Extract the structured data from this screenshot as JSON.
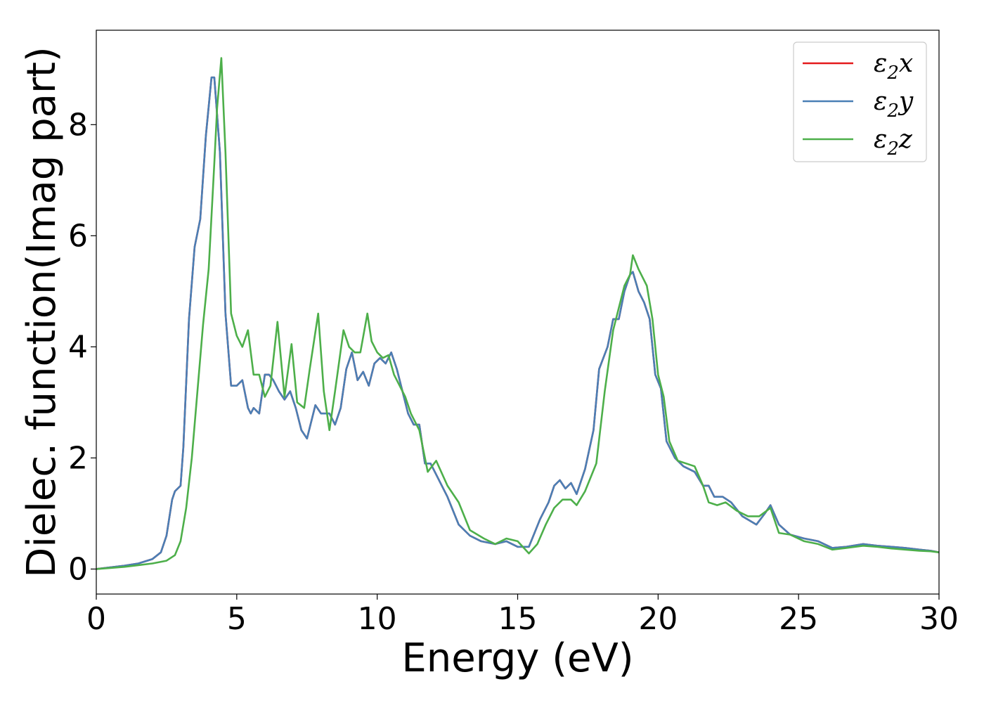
{
  "chart_data": {
    "type": "line",
    "title": "",
    "xlabel": "Energy (eV)",
    "ylabel": "Dielec. function(Imag part)",
    "xlim": [
      0,
      30
    ],
    "ylim": [
      -0.45,
      9.7
    ],
    "xticks": [
      0,
      5,
      10,
      15,
      20,
      25,
      30
    ],
    "yticks": [
      0,
      2,
      4,
      6,
      8
    ],
    "grid": false,
    "legend": "top-right",
    "series": [
      {
        "name": "ε2x",
        "symbol": "ε",
        "sub": "2",
        "suffix": "x",
        "color": "#e41a1c",
        "x": [
          0,
          0.5,
          1,
          1.5,
          2,
          2.3,
          2.5,
          2.7,
          2.8,
          3,
          3.1,
          3.3,
          3.5,
          3.7,
          3.9,
          4.1,
          4.2,
          4.4,
          4.6,
          4.8,
          5,
          5.2,
          5.4,
          5.5,
          5.6,
          5.8,
          6,
          6.15,
          6.3,
          6.5,
          6.7,
          6.9,
          7.1,
          7.3,
          7.5,
          7.8,
          8,
          8.3,
          8.5,
          8.7,
          8.9,
          9.1,
          9.3,
          9.5,
          9.7,
          9.9,
          10.1,
          10.3,
          10.5,
          10.7,
          10.9,
          11.1,
          11.3,
          11.5,
          11.7,
          11.9,
          12.1,
          12.5,
          12.9,
          13.3,
          13.7,
          14.2,
          14.6,
          15,
          15.4,
          15.8,
          16.1,
          16.3,
          16.5,
          16.7,
          16.9,
          17.1,
          17.4,
          17.7,
          17.9,
          18.2,
          18.4,
          18.6,
          18.8,
          19,
          19.1,
          19.3,
          19.5,
          19.7,
          19.9,
          20.1,
          20.3,
          20.6,
          20.9,
          21.3,
          21.6,
          21.8,
          22,
          22.3,
          22.6,
          23,
          23.5,
          23.8,
          24,
          24.3,
          24.7,
          25.2,
          25.7,
          26.2,
          26.7,
          27.3,
          27.8,
          28.3,
          28.8,
          29.3,
          29.7,
          30
        ],
        "y": [
          0,
          0.03,
          0.06,
          0.1,
          0.18,
          0.3,
          0.6,
          1.25,
          1.4,
          1.5,
          2.2,
          4.5,
          5.8,
          6.3,
          7.8,
          8.85,
          8.85,
          7.5,
          4.6,
          3.3,
          3.3,
          3.4,
          2.9,
          2.8,
          2.9,
          2.8,
          3.5,
          3.5,
          3.4,
          3.2,
          3.05,
          3.2,
          2.9,
          2.5,
          2.35,
          2.95,
          2.8,
          2.8,
          2.6,
          2.9,
          3.6,
          3.9,
          3.4,
          3.55,
          3.3,
          3.7,
          3.8,
          3.7,
          3.9,
          3.6,
          3.2,
          2.8,
          2.6,
          2.6,
          1.9,
          1.9,
          1.7,
          1.3,
          0.8,
          0.6,
          0.5,
          0.45,
          0.5,
          0.4,
          0.4,
          0.9,
          1.2,
          1.5,
          1.6,
          1.45,
          1.55,
          1.35,
          1.8,
          2.5,
          3.6,
          4,
          4.5,
          4.5,
          5,
          5.3,
          5.35,
          5,
          4.8,
          4.5,
          3.5,
          3.25,
          2.3,
          2,
          1.85,
          1.75,
          1.5,
          1.5,
          1.3,
          1.3,
          1.2,
          0.95,
          0.8,
          1,
          1.15,
          0.8,
          0.62,
          0.55,
          0.5,
          0.38,
          0.4,
          0.45,
          0.42,
          0.4,
          0.38,
          0.35,
          0.33,
          0.3
        ]
      },
      {
        "name": "ε2y",
        "symbol": "ε",
        "sub": "2",
        "suffix": "y",
        "color": "#4a7fb5",
        "x": [
          0,
          0.5,
          1,
          1.5,
          2,
          2.3,
          2.5,
          2.7,
          2.8,
          3,
          3.1,
          3.3,
          3.5,
          3.7,
          3.9,
          4.1,
          4.2,
          4.4,
          4.6,
          4.8,
          5,
          5.2,
          5.4,
          5.5,
          5.6,
          5.8,
          6,
          6.15,
          6.3,
          6.5,
          6.7,
          6.9,
          7.1,
          7.3,
          7.5,
          7.8,
          8,
          8.3,
          8.5,
          8.7,
          8.9,
          9.1,
          9.3,
          9.5,
          9.7,
          9.9,
          10.1,
          10.3,
          10.5,
          10.7,
          10.9,
          11.1,
          11.3,
          11.5,
          11.7,
          11.9,
          12.1,
          12.5,
          12.9,
          13.3,
          13.7,
          14.2,
          14.6,
          15,
          15.4,
          15.8,
          16.1,
          16.3,
          16.5,
          16.7,
          16.9,
          17.1,
          17.4,
          17.7,
          17.9,
          18.2,
          18.4,
          18.6,
          18.8,
          19,
          19.1,
          19.3,
          19.5,
          19.7,
          19.9,
          20.1,
          20.3,
          20.6,
          20.9,
          21.3,
          21.6,
          21.8,
          22,
          22.3,
          22.6,
          23,
          23.5,
          23.8,
          24,
          24.3,
          24.7,
          25.2,
          25.7,
          26.2,
          26.7,
          27.3,
          27.8,
          28.3,
          28.8,
          29.3,
          29.7,
          30
        ],
        "y": [
          0,
          0.03,
          0.06,
          0.1,
          0.18,
          0.3,
          0.6,
          1.25,
          1.4,
          1.5,
          2.2,
          4.5,
          5.8,
          6.3,
          7.8,
          8.85,
          8.85,
          7.5,
          4.6,
          3.3,
          3.3,
          3.4,
          2.9,
          2.8,
          2.9,
          2.8,
          3.5,
          3.5,
          3.4,
          3.2,
          3.05,
          3.2,
          2.9,
          2.5,
          2.35,
          2.95,
          2.8,
          2.8,
          2.6,
          2.9,
          3.6,
          3.9,
          3.4,
          3.55,
          3.3,
          3.7,
          3.8,
          3.7,
          3.9,
          3.6,
          3.2,
          2.8,
          2.6,
          2.6,
          1.9,
          1.9,
          1.7,
          1.3,
          0.8,
          0.6,
          0.5,
          0.45,
          0.5,
          0.4,
          0.4,
          0.9,
          1.2,
          1.5,
          1.6,
          1.45,
          1.55,
          1.35,
          1.8,
          2.5,
          3.6,
          4,
          4.5,
          4.5,
          5,
          5.3,
          5.35,
          5,
          4.8,
          4.5,
          3.5,
          3.25,
          2.3,
          2,
          1.85,
          1.75,
          1.5,
          1.5,
          1.3,
          1.3,
          1.2,
          0.95,
          0.8,
          1,
          1.15,
          0.8,
          0.62,
          0.55,
          0.5,
          0.38,
          0.4,
          0.45,
          0.42,
          0.4,
          0.38,
          0.35,
          0.33,
          0.3
        ]
      },
      {
        "name": "ε2z",
        "symbol": "ε",
        "sub": "2",
        "suffix": "z",
        "color": "#4daf4a",
        "x": [
          0,
          0.5,
          1,
          1.5,
          2,
          2.5,
          2.8,
          3,
          3.2,
          3.4,
          3.6,
          3.8,
          4,
          4.2,
          4.3,
          4.45,
          4.6,
          4.8,
          5,
          5.2,
          5.4,
          5.6,
          5.8,
          6,
          6.2,
          6.45,
          6.7,
          6.95,
          7.15,
          7.4,
          7.6,
          7.9,
          8.1,
          8.3,
          8.5,
          8.8,
          9,
          9.2,
          9.4,
          9.65,
          9.8,
          10,
          10.2,
          10.4,
          10.6,
          10.8,
          11,
          11.2,
          11.5,
          11.8,
          12.1,
          12.5,
          12.9,
          13.3,
          13.8,
          14.2,
          14.6,
          15,
          15.4,
          15.7,
          16,
          16.3,
          16.6,
          16.9,
          17.1,
          17.4,
          17.8,
          18.1,
          18.4,
          18.6,
          18.8,
          19,
          19.1,
          19.3,
          19.6,
          19.8,
          20,
          20.2,
          20.4,
          20.7,
          21,
          21.3,
          21.6,
          21.8,
          22.1,
          22.4,
          22.8,
          23.2,
          23.6,
          24,
          24.3,
          24.7,
          25.2,
          25.7,
          26.2,
          26.7,
          27.3,
          27.8,
          28.3,
          28.8,
          29.3,
          29.7,
          30
        ],
        "y": [
          0,
          0.02,
          0.04,
          0.07,
          0.1,
          0.15,
          0.25,
          0.5,
          1.1,
          2,
          3.2,
          4.4,
          5.4,
          7.3,
          8.3,
          9.2,
          7.5,
          4.6,
          4.2,
          4,
          4.3,
          3.5,
          3.5,
          3.1,
          3.3,
          4.45,
          3.1,
          4.05,
          3,
          2.9,
          3.6,
          4.6,
          3.2,
          2.5,
          3.2,
          4.3,
          4,
          3.9,
          3.9,
          4.6,
          4.1,
          3.9,
          3.8,
          3.85,
          3.5,
          3.3,
          3.1,
          2.8,
          2.5,
          1.75,
          1.95,
          1.5,
          1.2,
          0.7,
          0.55,
          0.45,
          0.55,
          0.5,
          0.28,
          0.45,
          0.8,
          1.1,
          1.25,
          1.25,
          1.15,
          1.4,
          1.9,
          3.2,
          4.3,
          4.7,
          5.1,
          5.3,
          5.65,
          5.4,
          5.1,
          4.5,
          3.5,
          3.1,
          2.3,
          1.95,
          1.9,
          1.85,
          1.5,
          1.2,
          1.15,
          1.2,
          1.05,
          0.95,
          0.95,
          1.1,
          0.65,
          0.62,
          0.5,
          0.45,
          0.35,
          0.38,
          0.42,
          0.4,
          0.37,
          0.35,
          0.33,
          0.32,
          0.3
        ]
      }
    ]
  }
}
